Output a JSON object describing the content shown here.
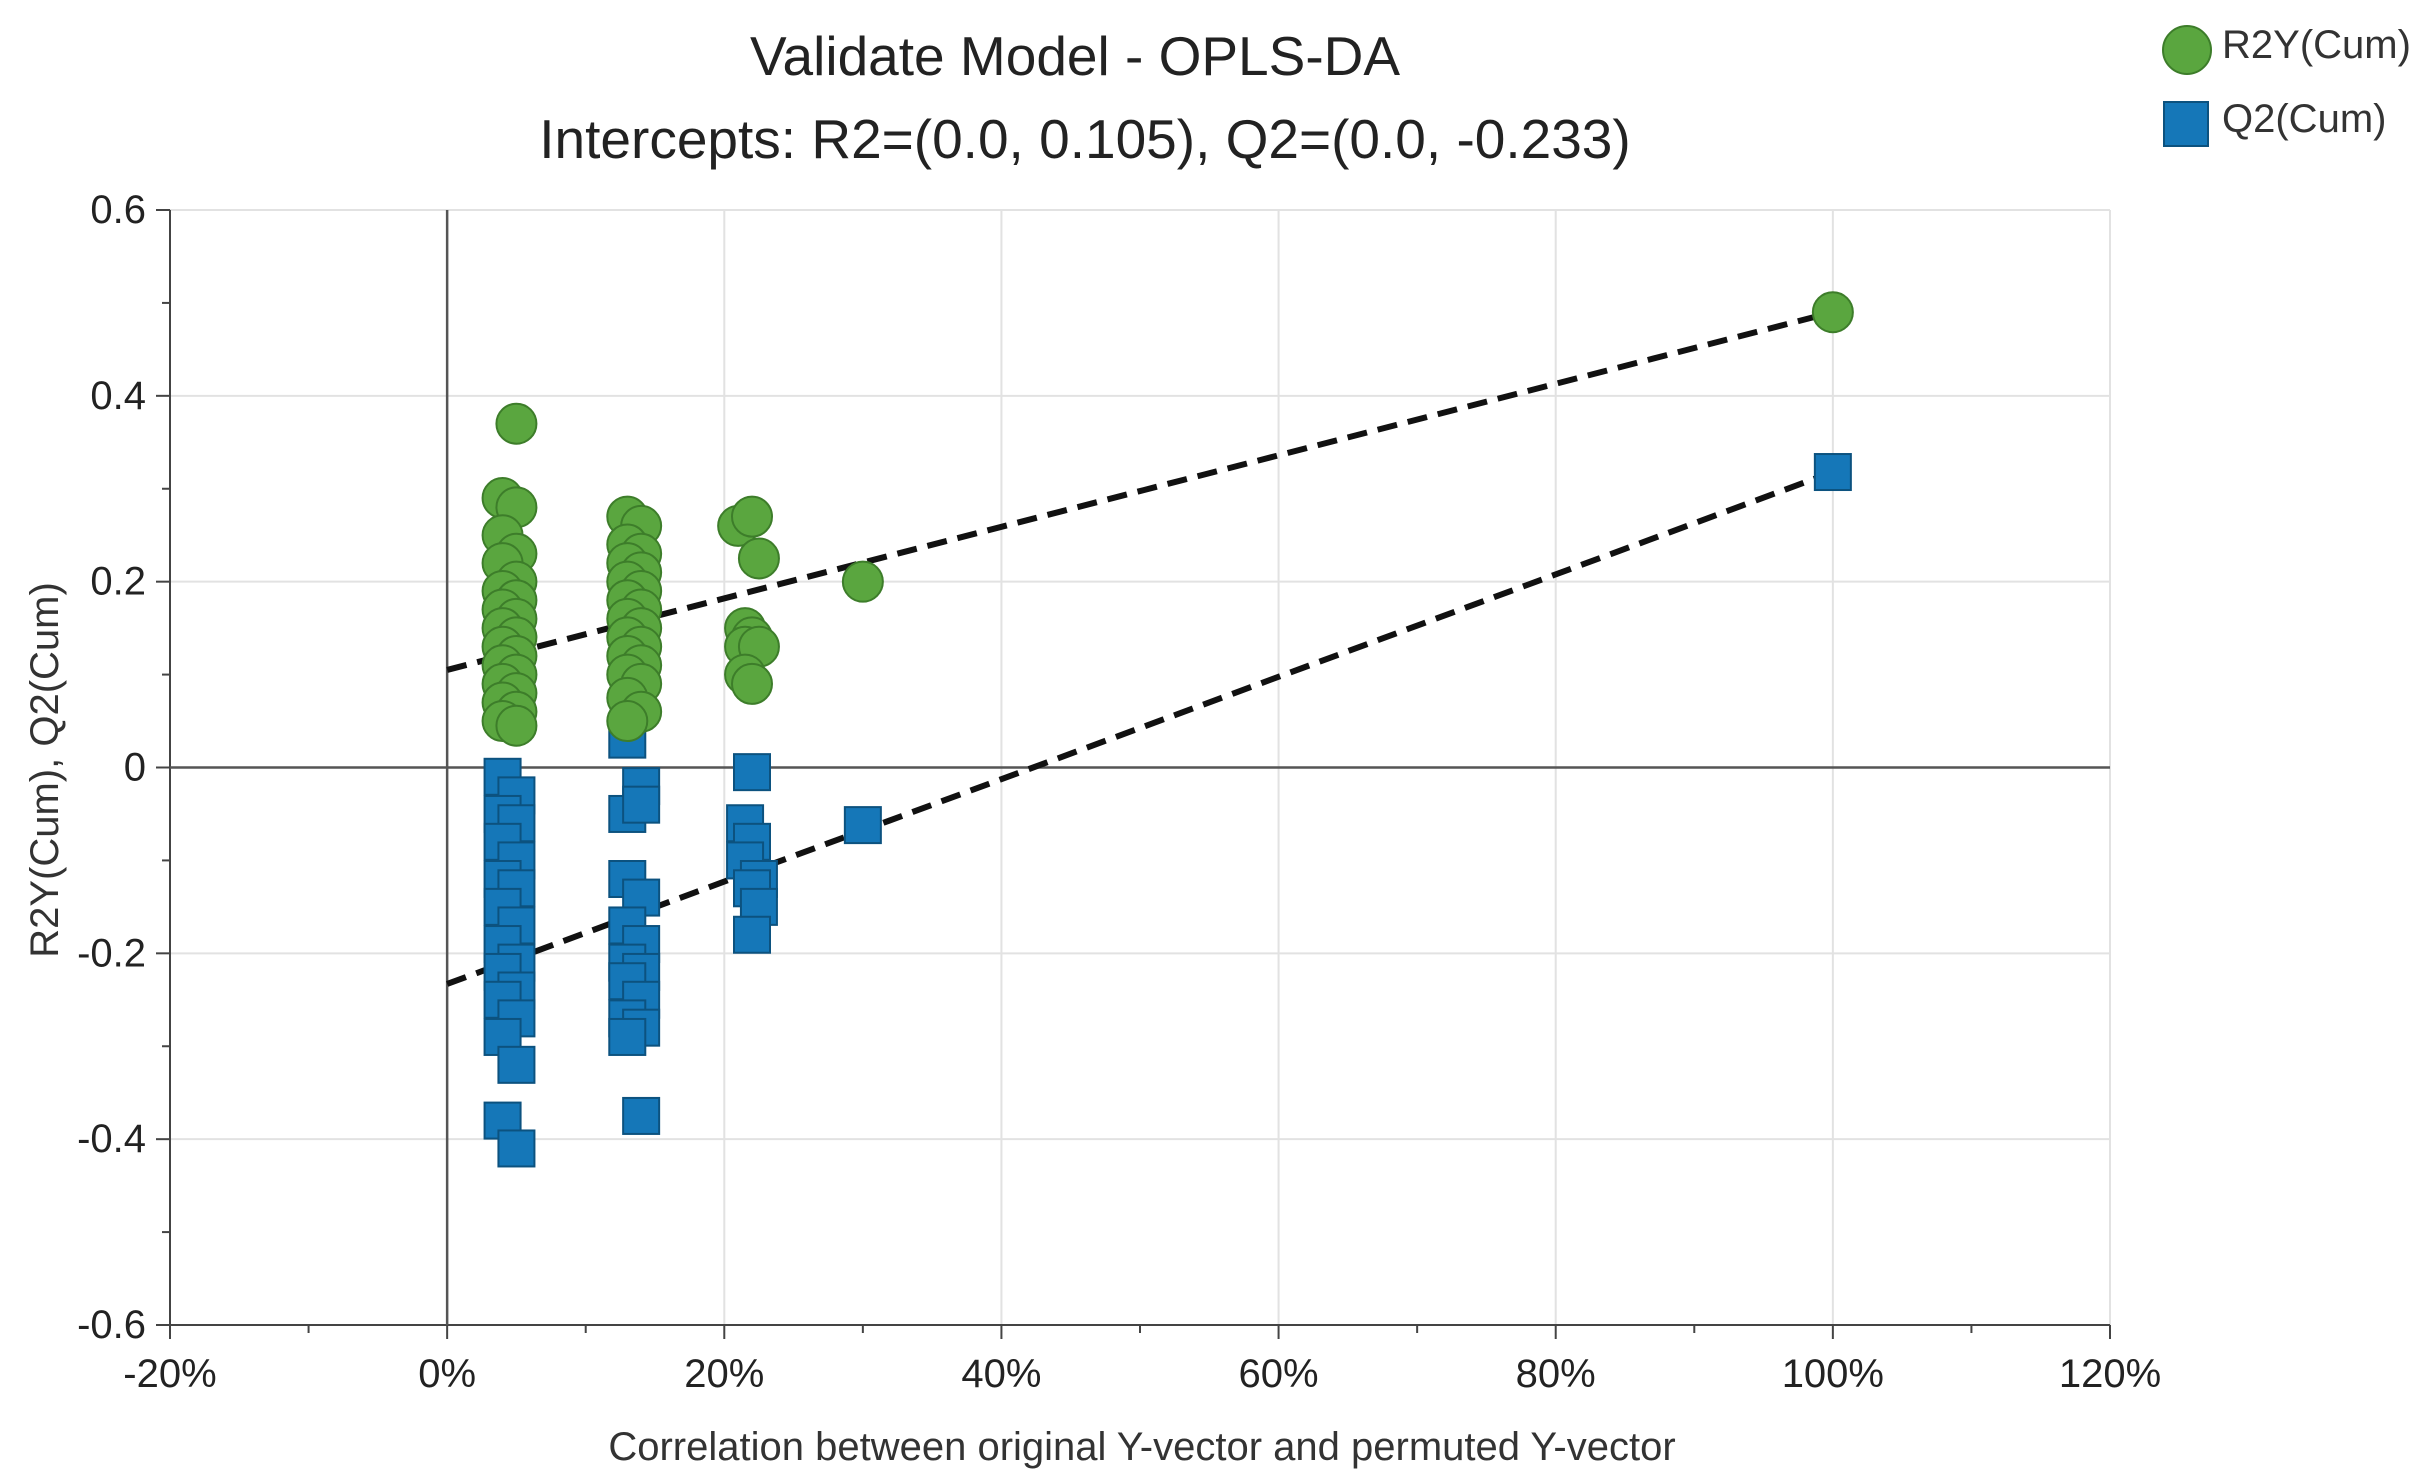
{
  "chart_data": {
    "type": "scatter",
    "title": "Validate Model - OPLS-DA",
    "subtitle": "Intercepts: R2=(0.0, 0.105), Q2=(0.0, -0.233)",
    "xlabel": "Correlation between original Y-vector and permuted Y-vector",
    "ylabel": "R2Y(Cum), Q2(Cum)",
    "xlim": [
      -0.2,
      1.2
    ],
    "ylim": [
      -0.6,
      0.6
    ],
    "x_ticks": [
      -0.2,
      0,
      0.2,
      0.4,
      0.6,
      0.8,
      1.0,
      1.2
    ],
    "x_tick_labels": [
      "-20%",
      "0%",
      "20%",
      "40%",
      "60%",
      "80%",
      "100%",
      "120%"
    ],
    "y_ticks": [
      -0.6,
      -0.4,
      -0.2,
      0,
      0.2,
      0.4,
      0.6
    ],
    "y_tick_labels": [
      "-0.6",
      "-0.4",
      "-0.2",
      "0",
      "0.2",
      "0.4",
      "0.6"
    ],
    "grid": true,
    "legend_position": "top-right",
    "colors": {
      "r2y_fill": "#5aa63f",
      "r2y_stroke": "#3d7d2a",
      "q2_fill": "#1577b8",
      "q2_stroke": "#0c527f"
    },
    "series": [
      {
        "name": "R2Y(Cum)",
        "marker": "circle",
        "x": [
          0.05,
          0.04,
          0.05,
          0.04,
          0.05,
          0.04,
          0.05,
          0.04,
          0.05,
          0.04,
          0.05,
          0.04,
          0.05,
          0.04,
          0.05,
          0.04,
          0.05,
          0.04,
          0.05,
          0.04,
          0.05,
          0.04,
          0.05,
          0.13,
          0.14,
          0.13,
          0.14,
          0.13,
          0.14,
          0.13,
          0.14,
          0.13,
          0.14,
          0.13,
          0.14,
          0.13,
          0.14,
          0.13,
          0.14,
          0.13,
          0.14,
          0.13,
          0.14,
          0.13,
          0.21,
          0.22,
          0.225,
          0.215,
          0.22,
          0.215,
          0.225,
          0.215,
          0.22,
          0.3,
          1.0
        ],
        "y": [
          0.37,
          0.29,
          0.28,
          0.25,
          0.23,
          0.22,
          0.2,
          0.19,
          0.18,
          0.17,
          0.16,
          0.15,
          0.14,
          0.13,
          0.12,
          0.11,
          0.1,
          0.09,
          0.08,
          0.07,
          0.06,
          0.05,
          0.045,
          0.27,
          0.26,
          0.24,
          0.23,
          0.22,
          0.21,
          0.2,
          0.19,
          0.18,
          0.17,
          0.16,
          0.15,
          0.14,
          0.13,
          0.12,
          0.11,
          0.1,
          0.09,
          0.075,
          0.06,
          0.05,
          0.26,
          0.27,
          0.225,
          0.15,
          0.14,
          0.13,
          0.13,
          0.1,
          0.09,
          0.2,
          0.49
        ]
      },
      {
        "name": "Q2(Cum)",
        "marker": "square",
        "x": [
          0.05,
          0.04,
          0.05,
          0.04,
          0.05,
          0.04,
          0.05,
          0.04,
          0.05,
          0.04,
          0.05,
          0.04,
          0.05,
          0.04,
          0.05,
          0.04,
          0.05,
          0.04,
          0.05,
          0.04,
          0.05,
          0.13,
          0.14,
          0.13,
          0.14,
          0.13,
          0.14,
          0.13,
          0.14,
          0.13,
          0.14,
          0.13,
          0.14,
          0.13,
          0.14,
          0.13,
          0.14,
          0.22,
          0.215,
          0.22,
          0.215,
          0.225,
          0.22,
          0.225,
          0.22,
          0.3,
          1.0
        ],
        "y": [
          0.07,
          -0.01,
          -0.03,
          -0.05,
          -0.06,
          -0.08,
          -0.1,
          -0.12,
          -0.13,
          -0.15,
          -0.17,
          -0.19,
          -0.21,
          -0.22,
          -0.24,
          -0.25,
          -0.27,
          -0.29,
          -0.32,
          -0.38,
          -0.41,
          0.03,
          -0.02,
          -0.05,
          -0.04,
          -0.12,
          -0.14,
          -0.17,
          -0.19,
          -0.21,
          -0.22,
          -0.23,
          -0.25,
          -0.27,
          -0.28,
          -0.29,
          -0.375,
          -0.005,
          -0.06,
          -0.08,
          -0.1,
          -0.12,
          -0.13,
          -0.15,
          -0.18,
          -0.062,
          0.318
        ]
      }
    ],
    "regression_lines": [
      {
        "name": "R2Y(Cum) fit",
        "x": [
          0.0,
          1.0
        ],
        "y": [
          0.105,
          0.49
        ]
      },
      {
        "name": "Q2(Cum) fit",
        "x": [
          0.0,
          1.0
        ],
        "y": [
          -0.233,
          0.318
        ]
      }
    ]
  }
}
